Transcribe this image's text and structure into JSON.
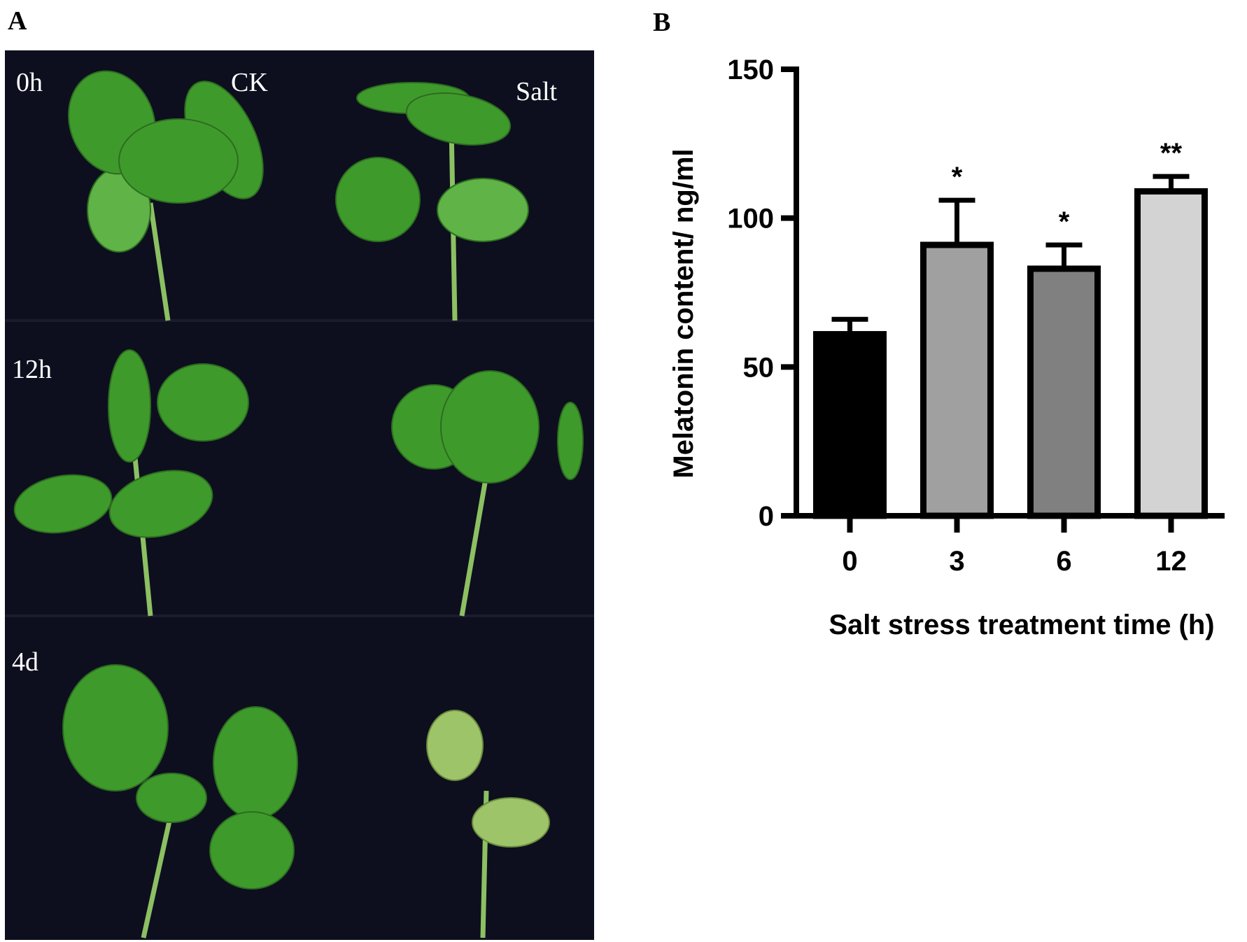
{
  "panels": [
    "A",
    "B"
  ],
  "photo": {
    "labels": [
      "0h",
      "CK",
      "Salt",
      "12h",
      "4d"
    ]
  },
  "chart_data": {
    "type": "bar",
    "x_label": "Salt stress treatment time (h)",
    "y_label": "Melatonin content/ ng/ml",
    "categories": [
      "0",
      "3",
      "6",
      "12"
    ],
    "values": [
      61,
      91,
      83,
      109
    ],
    "errors": [
      5,
      15,
      8,
      5
    ],
    "colors": [
      "#000000",
      "#a0a0a0",
      "#808080",
      "#d3d3d3"
    ],
    "annotations": [
      null,
      "*",
      "*",
      "**"
    ],
    "ylim": [
      0,
      150
    ],
    "yticks": [
      0,
      50,
      100,
      150
    ]
  }
}
